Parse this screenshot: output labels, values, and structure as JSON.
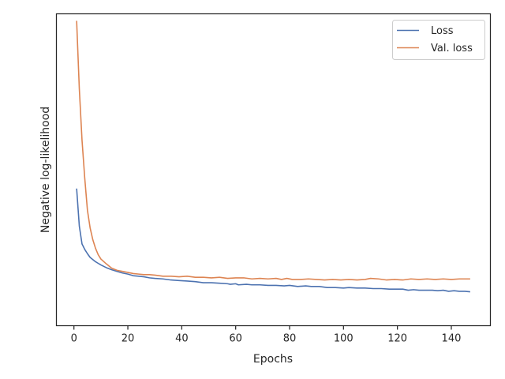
{
  "chart_data": {
    "type": "line",
    "title": "",
    "xlabel": "Epochs",
    "ylabel": "Negative log-likelihood",
    "xlim": [
      -6.5,
      154.5
    ],
    "ylim": [
      0.9,
      6.7
    ],
    "x_ticks": [
      0,
      20,
      40,
      60,
      80,
      100,
      120,
      140
    ],
    "y_ticks_shown": false,
    "grid": false,
    "legend_position": "top-right",
    "series": [
      {
        "name": "Loss",
        "color": "#4c72b0",
        "points": [
          [
            1,
            3.45
          ],
          [
            2,
            2.75
          ],
          [
            3,
            2.42
          ],
          [
            4,
            2.32
          ],
          [
            5,
            2.24
          ],
          [
            6,
            2.17
          ],
          [
            7,
            2.13
          ],
          [
            8,
            2.09
          ],
          [
            9,
            2.06
          ],
          [
            10,
            2.03
          ],
          [
            12,
            1.98
          ],
          [
            14,
            1.94
          ],
          [
            16,
            1.91
          ],
          [
            18,
            1.88
          ],
          [
            20,
            1.86
          ],
          [
            22,
            1.83
          ],
          [
            24,
            1.82
          ],
          [
            26,
            1.81
          ],
          [
            28,
            1.79
          ],
          [
            30,
            1.78
          ],
          [
            33,
            1.77
          ],
          [
            36,
            1.75
          ],
          [
            39,
            1.74
          ],
          [
            42,
            1.73
          ],
          [
            45,
            1.72
          ],
          [
            48,
            1.7
          ],
          [
            51,
            1.7
          ],
          [
            54,
            1.69
          ],
          [
            57,
            1.68
          ],
          [
            58,
            1.67
          ],
          [
            60,
            1.68
          ],
          [
            61,
            1.66
          ],
          [
            64,
            1.67
          ],
          [
            66,
            1.66
          ],
          [
            69,
            1.66
          ],
          [
            72,
            1.65
          ],
          [
            75,
            1.65
          ],
          [
            78,
            1.64
          ],
          [
            80,
            1.65
          ],
          [
            83,
            1.63
          ],
          [
            86,
            1.64
          ],
          [
            88,
            1.63
          ],
          [
            91,
            1.63
          ],
          [
            94,
            1.61
          ],
          [
            97,
            1.61
          ],
          [
            100,
            1.6
          ],
          [
            102,
            1.61
          ],
          [
            105,
            1.6
          ],
          [
            108,
            1.6
          ],
          [
            111,
            1.59
          ],
          [
            114,
            1.59
          ],
          [
            117,
            1.58
          ],
          [
            120,
            1.58
          ],
          [
            122,
            1.58
          ],
          [
            124,
            1.56
          ],
          [
            126,
            1.57
          ],
          [
            128,
            1.56
          ],
          [
            130,
            1.56
          ],
          [
            133,
            1.56
          ],
          [
            135,
            1.55
          ],
          [
            137,
            1.56
          ],
          [
            139,
            1.54
          ],
          [
            141,
            1.55
          ],
          [
            143,
            1.54
          ],
          [
            145,
            1.54
          ],
          [
            147,
            1.53
          ]
        ]
      },
      {
        "name": "Val. loss",
        "color": "#dd8452",
        "points": [
          [
            1,
            6.57
          ],
          [
            2,
            5.3
          ],
          [
            3,
            4.35
          ],
          [
            4,
            3.65
          ],
          [
            5,
            3.05
          ],
          [
            6,
            2.72
          ],
          [
            7,
            2.5
          ],
          [
            8,
            2.34
          ],
          [
            9,
            2.22
          ],
          [
            10,
            2.14
          ],
          [
            12,
            2.05
          ],
          [
            14,
            1.97
          ],
          [
            16,
            1.93
          ],
          [
            18,
            1.91
          ],
          [
            20,
            1.89
          ],
          [
            22,
            1.87
          ],
          [
            24,
            1.86
          ],
          [
            26,
            1.85
          ],
          [
            28,
            1.85
          ],
          [
            30,
            1.84
          ],
          [
            33,
            1.82
          ],
          [
            36,
            1.82
          ],
          [
            39,
            1.81
          ],
          [
            42,
            1.82
          ],
          [
            45,
            1.8
          ],
          [
            48,
            1.8
          ],
          [
            51,
            1.79
          ],
          [
            54,
            1.8
          ],
          [
            57,
            1.78
          ],
          [
            60,
            1.79
          ],
          [
            63,
            1.79
          ],
          [
            66,
            1.77
          ],
          [
            69,
            1.78
          ],
          [
            72,
            1.77
          ],
          [
            75,
            1.78
          ],
          [
            77,
            1.76
          ],
          [
            79,
            1.78
          ],
          [
            81,
            1.76
          ],
          [
            84,
            1.76
          ],
          [
            87,
            1.77
          ],
          [
            90,
            1.76
          ],
          [
            93,
            1.75
          ],
          [
            96,
            1.76
          ],
          [
            99,
            1.75
          ],
          [
            102,
            1.76
          ],
          [
            105,
            1.75
          ],
          [
            108,
            1.76
          ],
          [
            110,
            1.78
          ],
          [
            113,
            1.77
          ],
          [
            116,
            1.75
          ],
          [
            119,
            1.76
          ],
          [
            122,
            1.75
          ],
          [
            125,
            1.77
          ],
          [
            128,
            1.76
          ],
          [
            131,
            1.77
          ],
          [
            134,
            1.76
          ],
          [
            137,
            1.77
          ],
          [
            140,
            1.76
          ],
          [
            143,
            1.77
          ],
          [
            147,
            1.77
          ]
        ]
      }
    ]
  }
}
